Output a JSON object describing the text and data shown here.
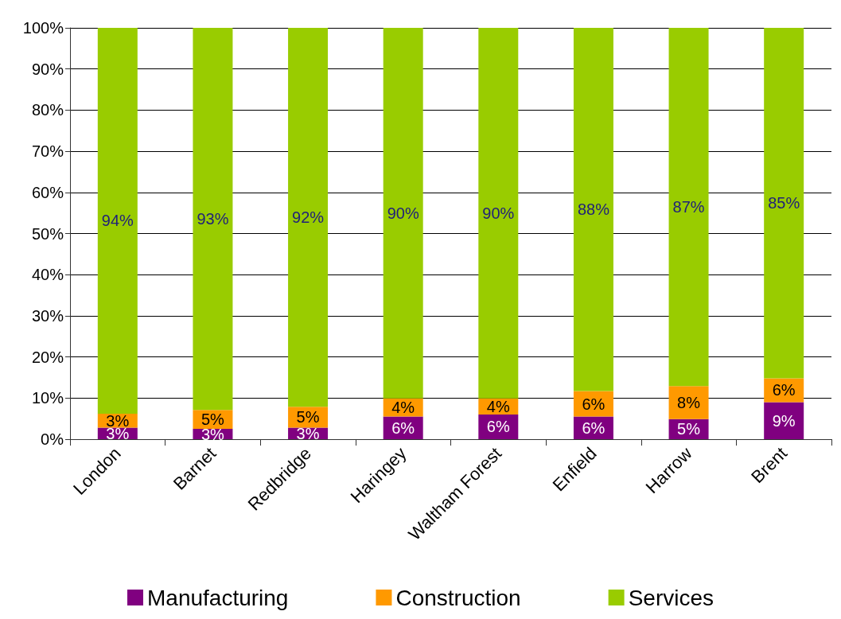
{
  "chart_data": {
    "type": "bar",
    "stacked": true,
    "categories": [
      "London",
      "Barnet",
      "Redbridge",
      "Haringey",
      "Waltham Forest",
      "Enfield",
      "Harrow",
      "Brent"
    ],
    "series": [
      {
        "name": "Manufacturing",
        "color": "#800080",
        "values": [
          2.8,
          2.5,
          2.8,
          5.5,
          6.0,
          5.5,
          4.9,
          9.0
        ],
        "value_labels": [
          "3%",
          "3%",
          "3%",
          "6%",
          "6%",
          "6%",
          "5%",
          "9%"
        ]
      },
      {
        "name": "Construction",
        "color": "#ff9900",
        "values": [
          3.4,
          4.6,
          5.1,
          4.4,
          3.9,
          6.2,
          8.0,
          5.8
        ],
        "value_labels": [
          "3%",
          "5%",
          "5%",
          "4%",
          "4%",
          "6%",
          "8%",
          "6%"
        ]
      },
      {
        "name": "Services",
        "color": "#99cc00",
        "values": [
          93.8,
          92.9,
          92.1,
          90.1,
          90.1,
          88.3,
          87.1,
          85.2
        ],
        "value_labels": [
          "94%",
          "93%",
          "92%",
          "90%",
          "90%",
          "88%",
          "87%",
          "85%"
        ]
      }
    ],
    "ylim": [
      0,
      100
    ],
    "yticks": [
      {
        "value": 0,
        "label": "0%"
      },
      {
        "value": 10,
        "label": "10%"
      },
      {
        "value": 20,
        "label": "20%"
      },
      {
        "value": 30,
        "label": "30%"
      },
      {
        "value": 40,
        "label": "40%"
      },
      {
        "value": 50,
        "label": "50%"
      },
      {
        "value": 60,
        "label": "60%"
      },
      {
        "value": 70,
        "label": "70%"
      },
      {
        "value": 80,
        "label": "80%"
      },
      {
        "value": 90,
        "label": "90%"
      },
      {
        "value": 100,
        "label": "100%"
      }
    ],
    "grid": "y",
    "legend": "bottom"
  }
}
